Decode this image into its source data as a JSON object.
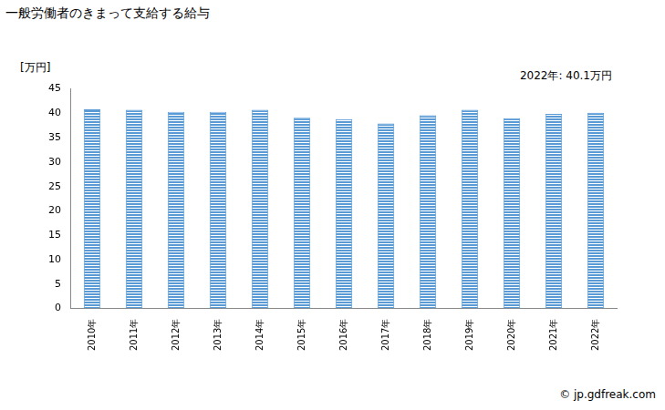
{
  "chart_data": {
    "type": "bar",
    "title": "一般労働者のきまって支給する給与",
    "y_label": "[万円]",
    "annotations": [
      "2022年: 40.1万円"
    ],
    "source": "© jp.gdfreak.com",
    "categories": [
      "2010年",
      "2011年",
      "2012年",
      "2013年",
      "2014年",
      "2015年",
      "2016年",
      "2017年",
      "2018年",
      "2019年",
      "2020年",
      "2021年",
      "2022年"
    ],
    "values": [
      40.8,
      40.7,
      40.3,
      40.3,
      40.7,
      39.1,
      38.8,
      37.9,
      39.6,
      40.7,
      39.0,
      39.9,
      40.1
    ],
    "color": "#5b9bd5",
    "ylim": [
      0,
      45
    ],
    "yticks": [
      0,
      5,
      10,
      15,
      20,
      25,
      30,
      35,
      40,
      45
    ],
    "grid": false
  }
}
